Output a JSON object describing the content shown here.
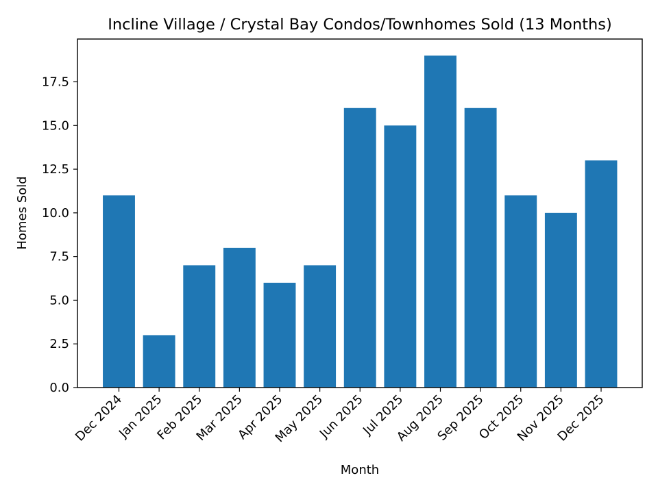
{
  "chart_data": {
    "type": "bar",
    "title": "Incline Village / Crystal Bay Condos/Townhomes Sold (13 Months)",
    "xlabel": "Month",
    "ylabel": "Homes Sold",
    "categories": [
      "Dec 2024",
      "Jan 2025",
      "Feb 2025",
      "Mar 2025",
      "Apr 2025",
      "May 2025",
      "Jun 2025",
      "Jul 2025",
      "Aug 2025",
      "Sep 2025",
      "Oct 2025",
      "Nov 2025",
      "Dec 2025"
    ],
    "values": [
      11,
      3,
      7,
      8,
      6,
      7,
      16,
      15,
      19,
      16,
      11,
      10,
      13
    ],
    "ylim": [
      0,
      19.95
    ],
    "yticks": [
      "0.0",
      "2.5",
      "5.0",
      "7.5",
      "10.0",
      "12.5",
      "15.0",
      "17.5"
    ],
    "grid": false,
    "legend": "none",
    "bar_color": "#1f77b4"
  }
}
